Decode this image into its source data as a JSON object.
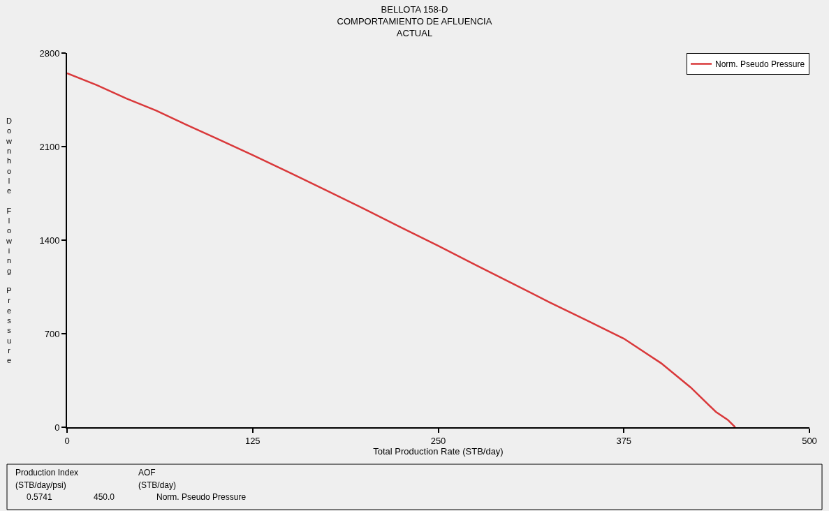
{
  "chart_data": {
    "type": "line",
    "title": "BELLOTA 158-D\nCOMPORTAMIENTO DE AFLUENCIA\nACTUAL",
    "xlabel": "Total Production Rate (STB/day)",
    "ylabel": "Downhole Flowing Pressure",
    "x": [
      0,
      20,
      40,
      60,
      80,
      100,
      125,
      150,
      175,
      200,
      225,
      250,
      275,
      300,
      325,
      350,
      375,
      400,
      420,
      437,
      445,
      450
    ],
    "series": [
      {
        "name": "Norm. Pseudo Pressure",
        "color": "#d9383a",
        "values": [
          2649,
          2560,
          2460,
          2370,
          2265,
          2165,
          2037,
          1905,
          1770,
          1635,
          1495,
          1358,
          1215,
          1075,
          935,
          800,
          663,
          480,
          298,
          115,
          55,
          0
        ]
      }
    ],
    "xlim": [
      0,
      500
    ],
    "xticks": [
      0,
      125,
      250,
      375,
      500
    ],
    "ylim": [
      0,
      2800
    ],
    "yticks": [
      0,
      700,
      1400,
      2100,
      2800
    ],
    "grid": false,
    "legend": "top right",
    "marker": "none",
    "line_style": "solid",
    "annotations": [
      "Production Index",
      "(STB/day/psi)",
      "0.5741",
      "AOF",
      "(STB/day)",
      "450.0",
      "Norm. Pseudo Pressure"
    ]
  }
}
